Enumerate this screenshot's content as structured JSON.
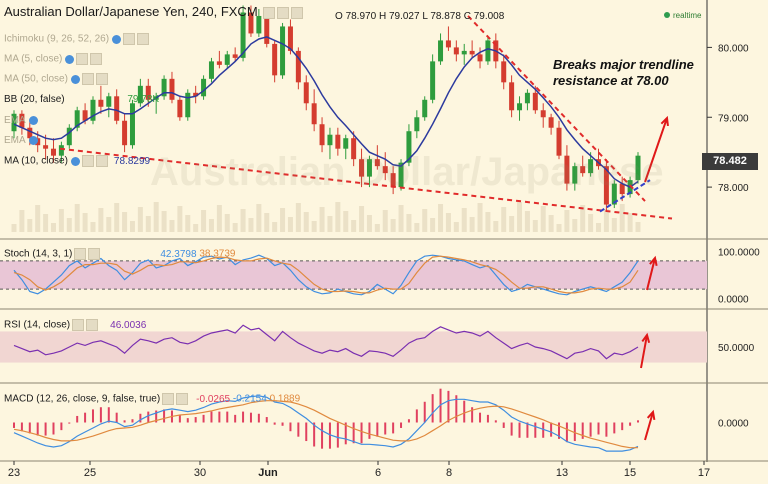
{
  "header": {
    "title": "Australian Dollar/Japanese Yen, 240, FXCM",
    "o_label": "O",
    "o_value": "78.970",
    "h_label": "H",
    "h_value": "79.027",
    "l_label": "L",
    "l_value": "78.878",
    "c_label": "C",
    "c_value": "79.008",
    "live_label": "realtime"
  },
  "watermark": "Australian Dollar/Japanese",
  "overlays": [
    {
      "text": "Ichimoku (9, 26, 52, 26)",
      "faded": true
    },
    {
      "text": "MA (5, close)",
      "faded": true
    },
    {
      "text": "MA (50, close)",
      "faded": true
    },
    {
      "text": "BB (20, false)",
      "faded": false
    },
    {
      "text": "EMA",
      "faded": true
    },
    {
      "text": "EMA",
      "faded": true
    },
    {
      "text": "MA (10, close)",
      "faded": false,
      "value": "78.8299"
    }
  ],
  "bb_value": "79.78K",
  "annotation": {
    "line1": "Breaks major trendline",
    "line2": "resistance at 78.00"
  },
  "current_price": "78.482",
  "colors": {
    "up": "#2e9c3d",
    "down": "#d43c2f",
    "ma": "#2c3a9e",
    "trend": "#e12b2b",
    "support": "#3340c8",
    "arrow": "#e01818",
    "stoch_k": "#3f8ee0",
    "stoch_d": "#e08a3f",
    "rsi": "#7a2fb0",
    "macd": "#3f8ee0",
    "signal": "#e08a3f",
    "hist": "#e0405f"
  },
  "x_axis": {
    "ticks": [
      "23",
      "25",
      "30",
      "Jun",
      "6",
      "8",
      "13",
      "15",
      "17"
    ]
  },
  "chart_data": [
    {
      "type": "candlestick",
      "title": "Australian Dollar/Japanese Yen, 240, FXCM",
      "ylim": [
        77.3,
        80.65
      ],
      "y_ticks": [
        "80.000",
        "79.000",
        "78.000"
      ],
      "candles": [
        [
          78.8,
          79.1,
          78.7,
          79.05
        ],
        [
          79.05,
          79.1,
          78.75,
          78.85
        ],
        [
          78.85,
          78.95,
          78.6,
          78.7
        ],
        [
          78.7,
          78.8,
          78.5,
          78.6
        ],
        [
          78.6,
          78.75,
          78.4,
          78.55
        ],
        [
          78.55,
          78.7,
          78.35,
          78.45
        ],
        [
          78.45,
          78.65,
          78.35,
          78.6
        ],
        [
          78.6,
          78.9,
          78.55,
          78.85
        ],
        [
          78.85,
          79.15,
          78.8,
          79.1
        ],
        [
          79.1,
          79.2,
          78.9,
          78.95
        ],
        [
          78.95,
          79.3,
          78.9,
          79.25
        ],
        [
          79.25,
          79.45,
          79.05,
          79.15
        ],
        [
          79.15,
          79.35,
          79.0,
          79.3
        ],
        [
          79.3,
          79.4,
          78.9,
          78.95
        ],
        [
          78.95,
          79.05,
          78.5,
          78.6
        ],
        [
          78.6,
          79.25,
          78.55,
          79.2
        ],
        [
          79.2,
          79.55,
          79.15,
          79.45
        ],
        [
          79.45,
          79.55,
          79.15,
          79.25
        ],
        [
          79.25,
          79.35,
          79.05,
          79.3
        ],
        [
          79.3,
          79.6,
          79.25,
          79.55
        ],
        [
          79.55,
          79.65,
          79.2,
          79.25
        ],
        [
          79.25,
          79.3,
          78.95,
          79.0
        ],
        [
          79.0,
          79.4,
          78.95,
          79.35
        ],
        [
          79.35,
          79.45,
          79.2,
          79.3
        ],
        [
          79.3,
          79.6,
          79.25,
          79.55
        ],
        [
          79.55,
          79.85,
          79.5,
          79.8
        ],
        [
          79.8,
          79.95,
          79.7,
          79.75
        ],
        [
          79.75,
          79.95,
          79.7,
          79.9
        ],
        [
          79.9,
          80.0,
          79.8,
          79.85
        ],
        [
          79.85,
          80.6,
          79.8,
          80.5
        ],
        [
          80.5,
          80.6,
          80.15,
          80.2
        ],
        [
          80.2,
          80.55,
          80.15,
          80.45
        ],
        [
          80.45,
          80.5,
          80.0,
          80.05
        ],
        [
          80.05,
          80.1,
          79.5,
          79.6
        ],
        [
          79.6,
          80.35,
          79.55,
          80.3
        ],
        [
          80.3,
          80.4,
          79.9,
          79.95
        ],
        [
          79.95,
          80.0,
          79.4,
          79.5
        ],
        [
          79.5,
          79.6,
          79.1,
          79.2
        ],
        [
          79.2,
          79.4,
          78.8,
          78.9
        ],
        [
          78.9,
          79.0,
          78.5,
          78.6
        ],
        [
          78.6,
          78.85,
          78.4,
          78.75
        ],
        [
          78.75,
          78.85,
          78.45,
          78.55
        ],
        [
          78.55,
          78.75,
          78.4,
          78.7
        ],
        [
          78.7,
          78.8,
          78.3,
          78.4
        ],
        [
          78.4,
          78.55,
          78.0,
          78.15
        ],
        [
          78.15,
          78.45,
          78.0,
          78.4
        ],
        [
          78.4,
          78.6,
          78.25,
          78.3
        ],
        [
          78.3,
          78.5,
          78.1,
          78.2
        ],
        [
          78.2,
          78.3,
          77.9,
          78.0
        ],
        [
          78.0,
          78.4,
          77.95,
          78.35
        ],
        [
          78.35,
          78.9,
          78.3,
          78.8
        ],
        [
          78.8,
          79.1,
          78.7,
          79.0
        ],
        [
          79.0,
          79.3,
          78.95,
          79.25
        ],
        [
          79.25,
          79.9,
          79.2,
          79.8
        ],
        [
          79.8,
          80.2,
          79.75,
          80.1
        ],
        [
          80.1,
          80.3,
          79.95,
          80.0
        ],
        [
          80.0,
          80.1,
          79.8,
          79.9
        ],
        [
          79.9,
          80.05,
          79.75,
          79.95
        ],
        [
          79.95,
          80.1,
          79.85,
          79.9
        ],
        [
          79.9,
          80.0,
          79.7,
          79.8
        ],
        [
          79.8,
          80.15,
          79.75,
          80.1
        ],
        [
          80.1,
          80.2,
          79.7,
          79.8
        ],
        [
          79.8,
          79.9,
          79.4,
          79.5
        ],
        [
          79.5,
          79.6,
          79.0,
          79.1
        ],
        [
          79.1,
          79.3,
          78.95,
          79.2
        ],
        [
          79.2,
          79.4,
          79.1,
          79.35
        ],
        [
          79.35,
          79.45,
          79.05,
          79.1
        ],
        [
          79.1,
          79.2,
          78.85,
          79.0
        ],
        [
          79.0,
          79.05,
          78.75,
          78.85
        ],
        [
          78.85,
          78.95,
          78.4,
          78.45
        ],
        [
          78.45,
          78.6,
          77.95,
          78.05
        ],
        [
          78.05,
          78.35,
          77.95,
          78.3
        ],
        [
          78.3,
          78.45,
          78.15,
          78.2
        ],
        [
          78.2,
          78.5,
          78.15,
          78.4
        ],
        [
          78.4,
          78.55,
          78.25,
          78.3
        ],
        [
          78.3,
          78.4,
          77.65,
          77.75
        ],
        [
          77.75,
          78.1,
          77.7,
          78.05
        ],
        [
          78.05,
          78.15,
          77.8,
          77.9
        ],
        [
          77.9,
          78.15,
          77.85,
          78.1
        ],
        [
          78.1,
          78.5,
          78.05,
          78.45
        ]
      ],
      "ma10": [
        78.9,
        78.85,
        78.8,
        78.75,
        78.7,
        78.68,
        78.7,
        78.78,
        78.88,
        78.95,
        79.02,
        79.08,
        79.12,
        79.1,
        79.05,
        79.05,
        79.12,
        79.2,
        79.28,
        79.35,
        79.35,
        79.3,
        79.28,
        79.3,
        79.38,
        79.48,
        79.6,
        79.7,
        79.8,
        79.92,
        80.05,
        80.12,
        80.15,
        80.1,
        80.05,
        79.98,
        79.85,
        79.7,
        79.52,
        79.32,
        79.15,
        79.0,
        78.88,
        78.75,
        78.62,
        78.5,
        78.45,
        78.4,
        78.32,
        78.3,
        78.4,
        78.52,
        78.7,
        78.9,
        79.12,
        79.35,
        79.55,
        79.72,
        79.85,
        79.93,
        79.98,
        79.95,
        79.88,
        79.75,
        79.6,
        79.5,
        79.4,
        79.28,
        79.15,
        79.0,
        78.82,
        78.68,
        78.55,
        78.45,
        78.35,
        78.25,
        78.12,
        78.05,
        78.0,
        78.08
      ],
      "annotations": [
        "Breaks major trendline",
        "resistance at 78.00"
      ]
    },
    {
      "type": "line",
      "title": "Stoch (14, 3, 1)",
      "ylim": [
        0,
        100
      ],
      "y_ticks": [
        "100.0000",
        "0.0000"
      ],
      "series": [
        {
          "name": "%K",
          "value_label": "42.3798",
          "values": [
            60,
            40,
            15,
            10,
            20,
            35,
            50,
            70,
            80,
            65,
            75,
            85,
            70,
            60,
            40,
            55,
            75,
            82,
            65,
            70,
            80,
            85,
            70,
            78,
            88,
            90,
            84,
            88,
            72,
            82,
            86,
            92,
            85,
            70,
            76,
            60,
            40,
            25,
            15,
            10,
            12,
            20,
            15,
            10,
            8,
            15,
            30,
            20,
            10,
            28,
            55,
            80,
            90,
            92,
            90,
            85,
            82,
            80,
            72,
            65,
            70,
            50,
            30,
            15,
            20,
            30,
            25,
            20,
            15,
            10,
            8,
            15,
            20,
            25,
            20,
            15,
            25,
            35,
            55,
            80
          ]
        },
        {
          "name": "%D",
          "value_label": "38.3739",
          "values": [
            55,
            50,
            40,
            25,
            18,
            25,
            35,
            50,
            65,
            72,
            72,
            75,
            75,
            72,
            58,
            52,
            60,
            70,
            72,
            70,
            72,
            78,
            78,
            76,
            80,
            85,
            88,
            87,
            82,
            80,
            80,
            84,
            86,
            80,
            75,
            72,
            60,
            45,
            30,
            20,
            15,
            15,
            16,
            15,
            12,
            12,
            18,
            22,
            20,
            20,
            32,
            55,
            75,
            88,
            90,
            88,
            85,
            82,
            78,
            72,
            68,
            62,
            50,
            35,
            22,
            22,
            25,
            25,
            20,
            15,
            12,
            12,
            15,
            20,
            22,
            20,
            20,
            25,
            35,
            60
          ]
        }
      ]
    },
    {
      "type": "line",
      "title": "RSI (14, close)",
      "ylim": [
        0,
        100
      ],
      "y_ticks": [
        "50.0000"
      ],
      "series": [
        {
          "name": "RSI",
          "value_label": "46.0036",
          "values": [
            52,
            48,
            44,
            46,
            40,
            42,
            45,
            50,
            55,
            52,
            56,
            58,
            54,
            50,
            42,
            52,
            60,
            58,
            55,
            60,
            62,
            56,
            54,
            58,
            64,
            68,
            70,
            72,
            68,
            78,
            72,
            74,
            66,
            58,
            70,
            62,
            55,
            50,
            45,
            42,
            46,
            44,
            48,
            42,
            38,
            45,
            44,
            42,
            38,
            46,
            55,
            60,
            62,
            70,
            76,
            72,
            68,
            70,
            68,
            64,
            70,
            62,
            55,
            48,
            52,
            55,
            50,
            48,
            45,
            40,
            35,
            42,
            44,
            48,
            45,
            35,
            42,
            40,
            44,
            50
          ]
        }
      ]
    },
    {
      "type": "bar",
      "title": "MACD (12, 26, close, 9, false, true)",
      "ylim": [
        -0.55,
        0.55
      ],
      "y_ticks": [
        "0.0000"
      ],
      "value_labels": [
        "-0.0265",
        "-0.2154",
        "0.1889"
      ],
      "macd": [
        -0.15,
        -0.2,
        -0.25,
        -0.3,
        -0.34,
        -0.36,
        -0.34,
        -0.28,
        -0.2,
        -0.14,
        -0.08,
        -0.02,
        0.02,
        0.0,
        -0.06,
        -0.04,
        0.04,
        0.1,
        0.14,
        0.18,
        0.2,
        0.18,
        0.16,
        0.18,
        0.22,
        0.27,
        0.3,
        0.32,
        0.31,
        0.36,
        0.38,
        0.39,
        0.37,
        0.3,
        0.28,
        0.22,
        0.14,
        0.06,
        -0.04,
        -0.12,
        -0.18,
        -0.22,
        -0.24,
        -0.28,
        -0.32,
        -0.32,
        -0.33,
        -0.34,
        -0.36,
        -0.32,
        -0.24,
        -0.12,
        0.0,
        0.14,
        0.26,
        0.32,
        0.34,
        0.34,
        0.32,
        0.3,
        0.3,
        0.26,
        0.18,
        0.08,
        0.02,
        -0.02,
        -0.06,
        -0.1,
        -0.14,
        -0.2,
        -0.28,
        -0.32,
        -0.34,
        -0.36,
        -0.37,
        -0.42,
        -0.42,
        -0.42,
        -0.4,
        -0.35
      ],
      "signal": [
        -0.1,
        -0.12,
        -0.15,
        -0.18,
        -0.22,
        -0.25,
        -0.27,
        -0.27,
        -0.26,
        -0.23,
        -0.2,
        -0.16,
        -0.12,
        -0.09,
        -0.08,
        -0.07,
        -0.04,
        0.0,
        0.03,
        0.06,
        0.09,
        0.11,
        0.12,
        0.13,
        0.15,
        0.17,
        0.2,
        0.22,
        0.24,
        0.26,
        0.29,
        0.31,
        0.32,
        0.32,
        0.31,
        0.3,
        0.27,
        0.23,
        0.18,
        0.12,
        0.06,
        0.01,
        -0.04,
        -0.09,
        -0.13,
        -0.17,
        -0.2,
        -0.23,
        -0.26,
        -0.27,
        -0.27,
        -0.24,
        -0.19,
        -0.12,
        -0.05,
        0.03,
        0.09,
        0.14,
        0.18,
        0.21,
        0.23,
        0.24,
        0.23,
        0.2,
        0.16,
        0.12,
        0.08,
        0.04,
        -0.01,
        -0.05,
        -0.1,
        -0.15,
        -0.19,
        -0.23,
        -0.26,
        -0.29,
        -0.32,
        -0.35,
        -0.37,
        -0.37
      ]
    }
  ]
}
